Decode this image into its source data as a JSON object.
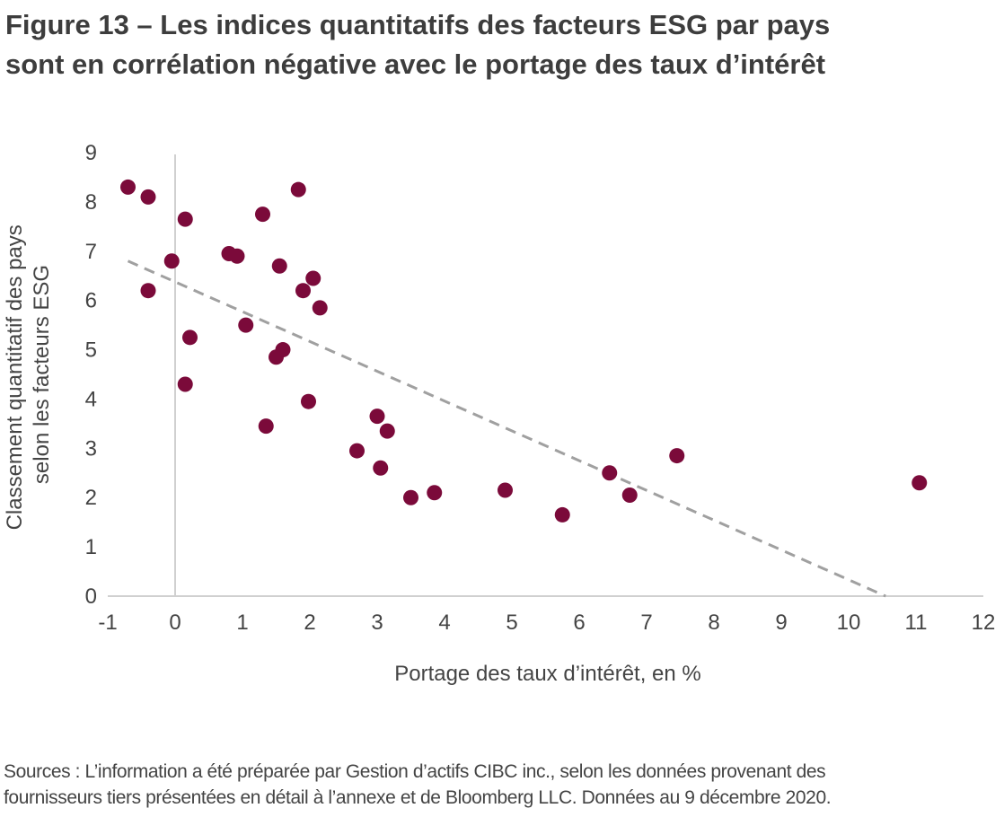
{
  "title": {
    "line1": "Figure 13 – Les indices quantitatifs des facteurs ESG par pays",
    "line2": "sont en corrélation négative avec le portage des taux d’intérêt"
  },
  "source": {
    "line1": "Sources : L’information a été préparée par Gestion d’actifs CIBC inc., selon les données provenant des",
    "line2": "fournisseurs tiers présentées en détail à l’annexe et de Bloomberg LLC. Données au 9 décembre 2020."
  },
  "colors": {
    "point": "#7b0a3a",
    "trend": "#a0a0a0",
    "axis": "#d0d0d0"
  },
  "chart_data": {
    "type": "scatter",
    "xlabel": "Portage des taux d’intérêt, en %",
    "ylabel_lines": [
      "Classement quantitatif des pays",
      "selon les facteurs ESG"
    ],
    "xlim": [
      -1,
      12
    ],
    "ylim": [
      0,
      9
    ],
    "x_ticks": [
      "-1",
      "0",
      "1",
      "2",
      "3",
      "4",
      "5",
      "6",
      "7",
      "8",
      "9",
      "10",
      "11",
      "12"
    ],
    "y_ticks": [
      "0",
      "1",
      "2",
      "3",
      "4",
      "5",
      "6",
      "7",
      "8",
      "9"
    ],
    "grid": false,
    "points": [
      {
        "x": -0.7,
        "y": 8.3
      },
      {
        "x": -0.4,
        "y": 8.1
      },
      {
        "x": -0.4,
        "y": 6.2
      },
      {
        "x": -0.05,
        "y": 6.8
      },
      {
        "x": 0.15,
        "y": 7.65
      },
      {
        "x": 0.22,
        "y": 5.25
      },
      {
        "x": 0.15,
        "y": 4.3
      },
      {
        "x": 0.8,
        "y": 6.95
      },
      {
        "x": 0.92,
        "y": 6.9
      },
      {
        "x": 1.05,
        "y": 5.5
      },
      {
        "x": 1.3,
        "y": 7.75
      },
      {
        "x": 1.35,
        "y": 3.45
      },
      {
        "x": 1.5,
        "y": 4.85
      },
      {
        "x": 1.55,
        "y": 6.7
      },
      {
        "x": 1.6,
        "y": 5.0
      },
      {
        "x": 1.83,
        "y": 8.25
      },
      {
        "x": 1.9,
        "y": 6.2
      },
      {
        "x": 1.98,
        "y": 3.95
      },
      {
        "x": 2.05,
        "y": 6.45
      },
      {
        "x": 2.15,
        "y": 5.85
      },
      {
        "x": 2.7,
        "y": 2.95
      },
      {
        "x": 3.0,
        "y": 3.65
      },
      {
        "x": 3.05,
        "y": 2.6
      },
      {
        "x": 3.15,
        "y": 3.35
      },
      {
        "x": 3.5,
        "y": 2.0
      },
      {
        "x": 3.85,
        "y": 2.1
      },
      {
        "x": 4.9,
        "y": 2.15
      },
      {
        "x": 5.75,
        "y": 1.65
      },
      {
        "x": 6.45,
        "y": 2.5
      },
      {
        "x": 6.75,
        "y": 2.05
      },
      {
        "x": 7.45,
        "y": 2.85
      },
      {
        "x": 11.05,
        "y": 2.3
      }
    ],
    "trendline": [
      {
        "x": -0.7,
        "y": 6.8
      },
      {
        "x": 10.55,
        "y": 0.0
      }
    ]
  }
}
